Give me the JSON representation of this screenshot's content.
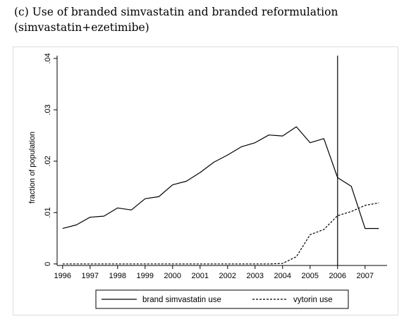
{
  "caption": "(c) Use of branded simvastatin and branded reformulation (simvastatin+ezetimibe)",
  "chart_data": {
    "type": "line",
    "title": "(c) Use of branded simvastatin and branded reformulation (simvastatin+ezetimibe)",
    "xlabel": "",
    "ylabel": "fraction of population",
    "xlim": [
      1996,
      2007.6
    ],
    "ylim": [
      0,
      0.04
    ],
    "x_ticks": [
      "1996",
      "1997",
      "1998",
      "1999",
      "2000",
      "2001",
      "2002",
      "2003",
      "2004",
      "2005",
      "2006",
      "2007"
    ],
    "y_ticks": [
      "0",
      ".01",
      ".02",
      ".03",
      ".04"
    ],
    "vertical_line_x": 2006,
    "legend_position": "bottom",
    "grid": false,
    "x": [
      1996,
      1996.5,
      1997,
      1997.5,
      1998,
      1998.5,
      1999,
      1999.5,
      2000,
      2000.5,
      2001,
      2001.5,
      2002,
      2002.5,
      2003,
      2003.5,
      2004,
      2004.5,
      2005,
      2005.5,
      2006,
      2006.5,
      2007,
      2007.5
    ],
    "series": [
      {
        "name": "brand simvastatin use",
        "style": "solid",
        "values": [
          0.0069,
          0.0076,
          0.0091,
          0.0093,
          0.0109,
          0.0105,
          0.0127,
          0.0131,
          0.0154,
          0.0161,
          0.0178,
          0.0198,
          0.0212,
          0.0228,
          0.0236,
          0.0251,
          0.0249,
          0.0267,
          0.0236,
          0.0244,
          0.0168,
          0.0151,
          0.0069,
          0.0069
        ]
      },
      {
        "name": "vytorin use",
        "style": "dashed",
        "values": [
          0,
          0,
          0,
          0,
          0,
          0,
          0,
          0,
          0,
          0,
          0,
          0,
          0,
          0,
          0,
          0,
          0.0001,
          0.0014,
          0.0057,
          0.0067,
          0.0094,
          0.0102,
          0.0114,
          0.0119
        ]
      }
    ]
  }
}
